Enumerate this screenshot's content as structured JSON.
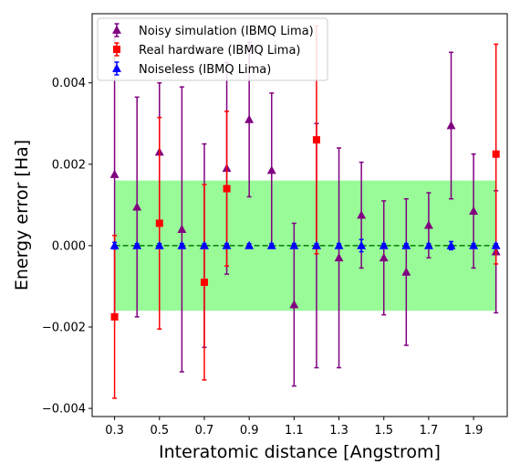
{
  "chart_data": {
    "type": "scatter",
    "title": "",
    "xlabel": "Interatomic distance [Angstrom]",
    "ylabel": "Energy error [Ha]",
    "xlim": [
      0.2,
      2.05
    ],
    "ylim": [
      -0.0042,
      0.0057
    ],
    "xticks": [
      0.3,
      0.5,
      0.7,
      0.9,
      1.1,
      1.3,
      1.5,
      1.7,
      1.9
    ],
    "xtick_labels": [
      "0.3",
      "0.5",
      "0.7",
      "0.9",
      "1.1",
      "1.3",
      "1.5",
      "1.7",
      "1.9"
    ],
    "yticks": [
      -0.004,
      -0.002,
      0.0,
      0.002,
      0.004
    ],
    "ytick_labels": [
      "−0.004",
      "−0.002",
      "0.000",
      "0.002",
      "0.004"
    ],
    "grid": false,
    "legend_position": "top-left",
    "chemical_accuracy_band": {
      "y_min": -0.0016,
      "y_max": 0.0016,
      "color": "#98fb98"
    },
    "reference_line": {
      "y": 0.0,
      "color": "#008000",
      "style": "dashed"
    },
    "series": [
      {
        "name": "Noisy simulation (IBMQ Lima)",
        "color": "#800080",
        "marker": "triangle",
        "points": [
          {
            "x": 0.3,
            "y": 0.00175,
            "err": 0.0035
          },
          {
            "x": 0.4,
            "y": 0.00095,
            "err": 0.0027
          },
          {
            "x": 0.5,
            "y": 0.0023,
            "err": 0.0017
          },
          {
            "x": 0.6,
            "y": 0.0004,
            "err": 0.0035
          },
          {
            "x": 0.7,
            "y": 0.0,
            "err": 0.0025
          },
          {
            "x": 0.8,
            "y": 0.0019,
            "err": 0.0026
          },
          {
            "x": 0.9,
            "y": 0.0031,
            "err": 0.0019
          },
          {
            "x": 1.0,
            "y": 0.00185,
            "err": 0.0019
          },
          {
            "x": 1.1,
            "y": -0.00145,
            "err": 0.002
          },
          {
            "x": 1.2,
            "y": 0.0,
            "err": 0.003
          },
          {
            "x": 1.3,
            "y": -0.0003,
            "err": 0.0027
          },
          {
            "x": 1.4,
            "y": 0.00075,
            "err": 0.0013
          },
          {
            "x": 1.5,
            "y": -0.0003,
            "err": 0.0014
          },
          {
            "x": 1.6,
            "y": -0.00065,
            "err": 0.0018
          },
          {
            "x": 1.7,
            "y": 0.0005,
            "err": 0.0008
          },
          {
            "x": 1.8,
            "y": 0.00295,
            "err": 0.0018
          },
          {
            "x": 1.9,
            "y": 0.00085,
            "err": 0.0014
          },
          {
            "x": 2.0,
            "y": -0.00015,
            "err": 0.0015
          }
        ]
      },
      {
        "name": "Real hardware (IBMQ Lima)",
        "color": "#ff0000",
        "marker": "square",
        "points": [
          {
            "x": 0.3,
            "y": -0.00175,
            "err": 0.002
          },
          {
            "x": 0.5,
            "y": 0.00055,
            "err": 0.0026
          },
          {
            "x": 0.7,
            "y": -0.0009,
            "err": 0.0024
          },
          {
            "x": 0.8,
            "y": 0.0014,
            "err": 0.0019
          },
          {
            "x": 1.2,
            "y": 0.0026,
            "err": 0.0028
          },
          {
            "x": 2.0,
            "y": 0.00225,
            "err": 0.0027
          }
        ]
      },
      {
        "name": "Noiseless (IBMQ Lima)",
        "color": "#0000ff",
        "marker": "triangle",
        "points": [
          {
            "x": 0.3,
            "y": 0.0,
            "err": 8e-05
          },
          {
            "x": 0.4,
            "y": 0.0,
            "err": 5e-05
          },
          {
            "x": 0.5,
            "y": 0.0,
            "err": 5e-05
          },
          {
            "x": 0.6,
            "y": 0.0,
            "err": 5e-05
          },
          {
            "x": 0.7,
            "y": 0.0,
            "err": 5e-05
          },
          {
            "x": 0.8,
            "y": 0.0,
            "err": 5e-05
          },
          {
            "x": 0.9,
            "y": 0.0,
            "err": 5e-05
          },
          {
            "x": 1.0,
            "y": 0.0,
            "err": 5e-05
          },
          {
            "x": 1.1,
            "y": 0.0,
            "err": 5e-05
          },
          {
            "x": 1.2,
            "y": 0.0,
            "err": 5e-05
          },
          {
            "x": 1.3,
            "y": 0.0,
            "err": 5e-05
          },
          {
            "x": 1.4,
            "y": 0.0,
            "err": 0.00015
          },
          {
            "x": 1.5,
            "y": 0.0,
            "err": 5e-05
          },
          {
            "x": 1.6,
            "y": 0.0,
            "err": 5e-05
          },
          {
            "x": 1.7,
            "y": 0.0,
            "err": 5e-05
          },
          {
            "x": 1.8,
            "y": 0.0,
            "err": 0.0001
          },
          {
            "x": 1.9,
            "y": 0.0,
            "err": 5e-05
          },
          {
            "x": 2.0,
            "y": 0.0,
            "err": 5e-05
          }
        ]
      }
    ]
  }
}
